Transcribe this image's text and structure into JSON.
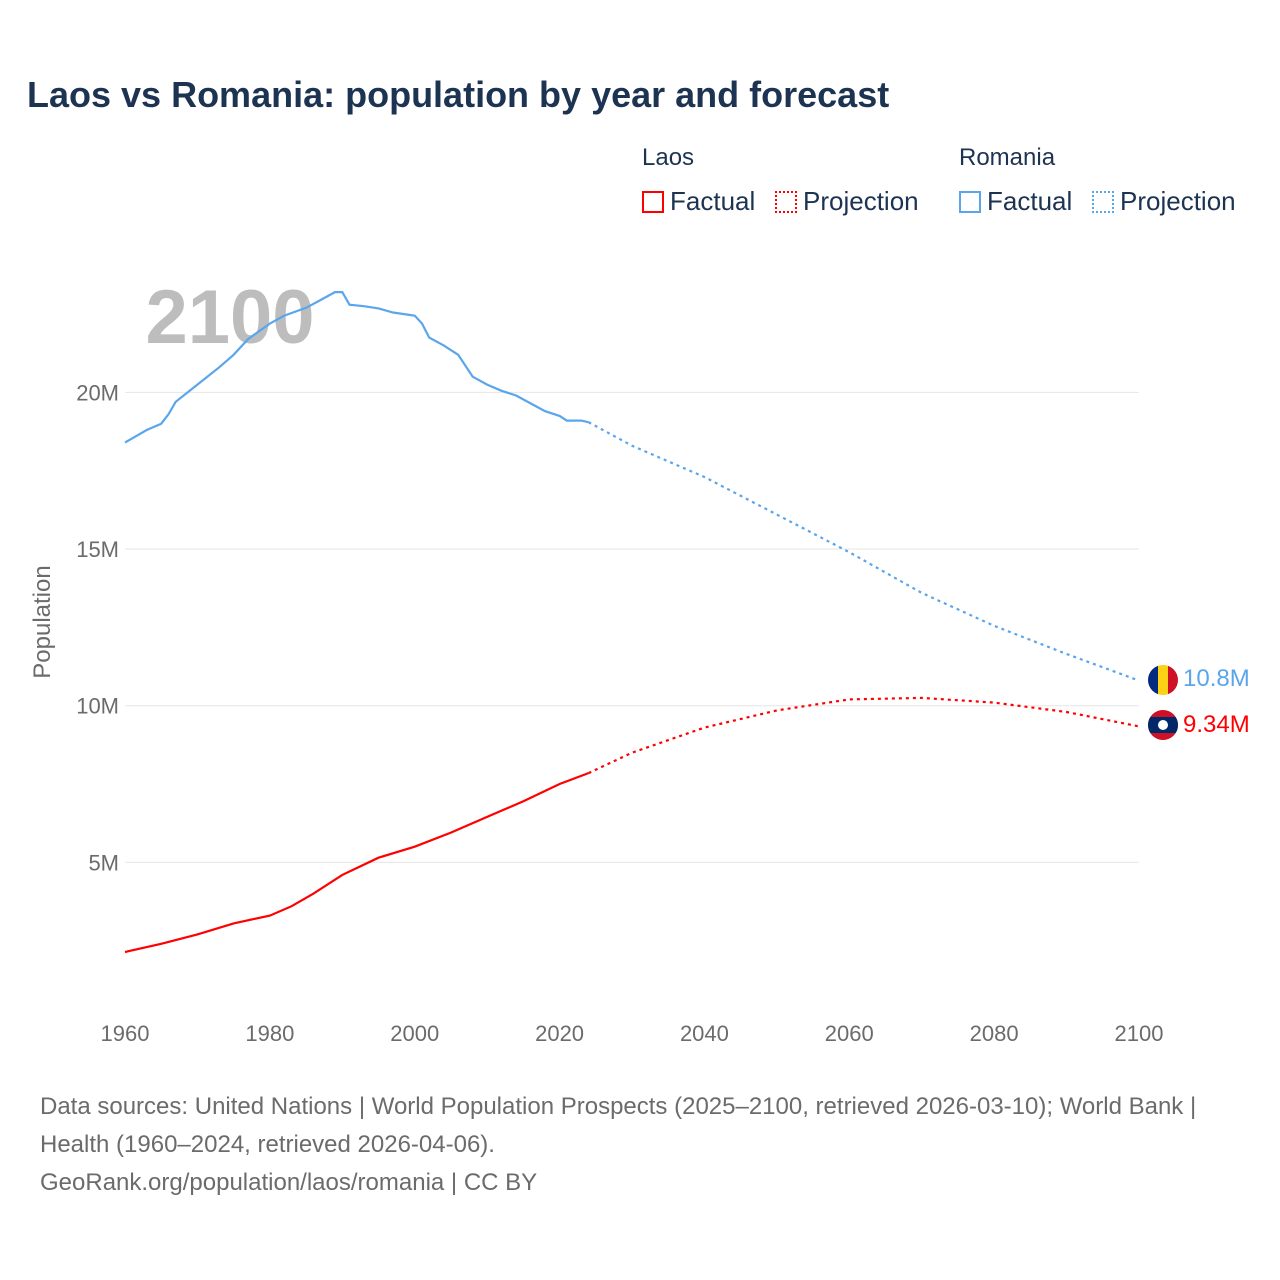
{
  "chart_data": {
    "type": "line",
    "title": "Laos vs Romania: population by year and forecast",
    "ylabel": "Population",
    "xlabel": "",
    "year_watermark": "2100",
    "xlim": [
      1960,
      2100
    ],
    "ylim": [
      0,
      24000000
    ],
    "x_ticks": [
      1960,
      1980,
      2000,
      2020,
      2040,
      2060,
      2080,
      2100
    ],
    "y_ticks": [
      {
        "v": 5000000,
        "label": "5M"
      },
      {
        "v": 10000000,
        "label": "10M"
      },
      {
        "v": 15000000,
        "label": "15M"
      },
      {
        "v": 20000000,
        "label": "20M"
      }
    ],
    "grid": true,
    "legend": {
      "placement": "top-right",
      "groups": [
        {
          "name": "Laos",
          "factual": "Factual",
          "projection": "Projection",
          "color": "#ff0000"
        },
        {
          "name": "Romania",
          "factual": "Factual",
          "projection": "Projection",
          "color": "#5aa5eb"
        }
      ]
    },
    "series": [
      {
        "name": "Romania",
        "color": "#5aa5eb",
        "end_label": "10.8M",
        "factual": [
          [
            1960,
            18.4
          ],
          [
            1963,
            18.8
          ],
          [
            1965,
            19.0
          ],
          [
            1966,
            19.3
          ],
          [
            1967,
            19.7
          ],
          [
            1970,
            20.25
          ],
          [
            1973,
            20.8
          ],
          [
            1975,
            21.2
          ],
          [
            1977,
            21.7
          ],
          [
            1980,
            22.2
          ],
          [
            1982,
            22.45
          ],
          [
            1985,
            22.7
          ],
          [
            1987,
            22.95
          ],
          [
            1989,
            23.2
          ],
          [
            1990,
            23.2
          ],
          [
            1991,
            22.8
          ],
          [
            1993,
            22.75
          ],
          [
            1995,
            22.68
          ],
          [
            1997,
            22.55
          ],
          [
            2000,
            22.45
          ],
          [
            2001,
            22.2
          ],
          [
            2002,
            21.75
          ],
          [
            2004,
            21.5
          ],
          [
            2006,
            21.2
          ],
          [
            2008,
            20.5
          ],
          [
            2010,
            20.25
          ],
          [
            2012,
            20.05
          ],
          [
            2014,
            19.9
          ],
          [
            2016,
            19.65
          ],
          [
            2018,
            19.4
          ],
          [
            2020,
            19.25
          ],
          [
            2021,
            19.1
          ],
          [
            2023,
            19.1
          ],
          [
            2024,
            19.05
          ]
        ],
        "projection": [
          [
            2024,
            19.05
          ],
          [
            2030,
            18.3
          ],
          [
            2040,
            17.3
          ],
          [
            2050,
            16.1
          ],
          [
            2060,
            14.9
          ],
          [
            2070,
            13.6
          ],
          [
            2080,
            12.55
          ],
          [
            2090,
            11.65
          ],
          [
            2100,
            10.8
          ]
        ]
      },
      {
        "name": "Laos",
        "color": "#ff0000",
        "end_label": "9.34M",
        "factual": [
          [
            1960,
            2.14
          ],
          [
            1965,
            2.4
          ],
          [
            1970,
            2.7
          ],
          [
            1975,
            3.05
          ],
          [
            1980,
            3.3
          ],
          [
            1983,
            3.6
          ],
          [
            1986,
            4.0
          ],
          [
            1990,
            4.6
          ],
          [
            1995,
            5.15
          ],
          [
            2000,
            5.5
          ],
          [
            2005,
            5.95
          ],
          [
            2010,
            6.45
          ],
          [
            2015,
            6.95
          ],
          [
            2020,
            7.5
          ],
          [
            2024,
            7.85
          ]
        ],
        "projection": [
          [
            2024,
            7.85
          ],
          [
            2030,
            8.5
          ],
          [
            2040,
            9.3
          ],
          [
            2050,
            9.85
          ],
          [
            2060,
            10.2
          ],
          [
            2070,
            10.25
          ],
          [
            2080,
            10.1
          ],
          [
            2090,
            9.8
          ],
          [
            2100,
            9.34
          ]
        ]
      }
    ]
  },
  "footer": {
    "sources": "Data sources: United Nations | World Population Prospects (2025–2100, retrieved 2026-03-10); World Bank | Health (1960–2024, retrieved 2026-04-06).",
    "credit": "GeoRank.org/population/laos/romania | CC BY"
  }
}
